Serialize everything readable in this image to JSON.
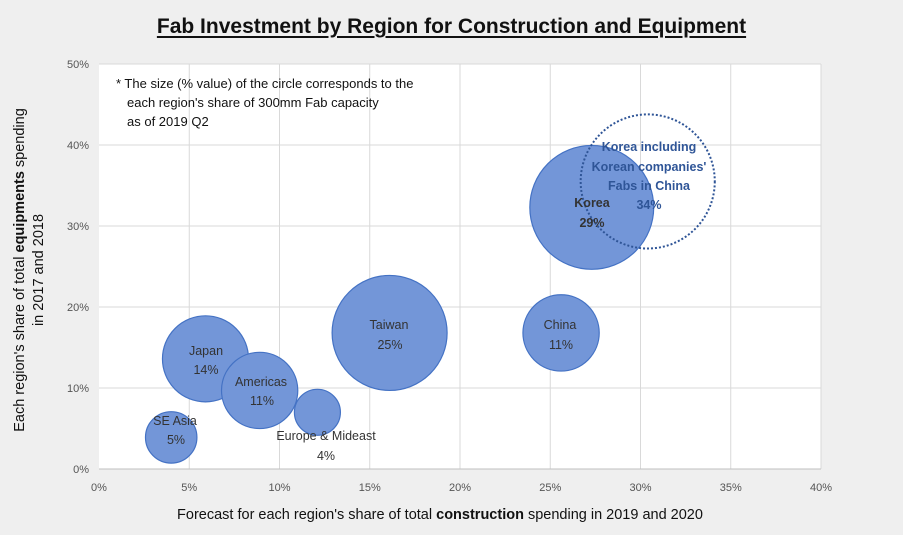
{
  "chart_data": {
    "type": "scatter",
    "title": "Fab Investment by Region for Construction and Equipment",
    "xlabel_pre": "Forecast for each region's share of total ",
    "xlabel_bold": "construction",
    "xlabel_post": " spending in 2019 and 2020",
    "ylabel_line1_pre": "Each region's share of total ",
    "ylabel_line1_bold": "equipments",
    "ylabel_line1_post": " spending",
    "ylabel_line2": "in  2017 and 2018",
    "xlim": [
      0,
      40
    ],
    "ylim": [
      0,
      50
    ],
    "x_ticks": [
      "0%",
      "5%",
      "10%",
      "15%",
      "20%",
      "25%",
      "30%",
      "35%",
      "40%"
    ],
    "y_ticks": [
      "0%",
      "10%",
      "20%",
      "30%",
      "40%",
      "50%"
    ],
    "note": [
      "* The size (% value) of the circle corresponds to the",
      "each region's share of 300mm Fab capacity",
      "as of 2019 Q2"
    ],
    "points": [
      {
        "name": "SE Asia",
        "x": 4.0,
        "y": 3.9,
        "size": 5,
        "label": "5%"
      },
      {
        "name": "Japan",
        "x": 5.9,
        "y": 13.6,
        "size": 14,
        "label": "14%"
      },
      {
        "name": "Americas",
        "x": 8.9,
        "y": 9.7,
        "size": 11,
        "label": "11%"
      },
      {
        "name": "Europe & Mideast",
        "x": 12.1,
        "y": 7.0,
        "size": 4,
        "label": "4%"
      },
      {
        "name": "Taiwan",
        "x": 16.1,
        "y": 16.8,
        "size": 25,
        "label": "25%"
      },
      {
        "name": "China",
        "x": 25.6,
        "y": 16.8,
        "size": 11,
        "label": "11%"
      },
      {
        "name": "Korea",
        "x": 27.3,
        "y": 32.3,
        "size": 29,
        "label": "29%"
      }
    ],
    "korea_extended": {
      "name_lines": [
        "Korea including",
        "Korean companies'",
        "Fabs in China"
      ],
      "x": 30.4,
      "y": 35.5,
      "size": 34,
      "label": "34%"
    },
    "colors": {
      "bubble_fill": "#7396d8",
      "bubble_stroke": "#4472c4",
      "dotted_stroke": "#2f5597",
      "plot_bg": "#ffffff",
      "page_bg": "#efefef",
      "grid": "#d9d9d9"
    },
    "grid": true
  }
}
